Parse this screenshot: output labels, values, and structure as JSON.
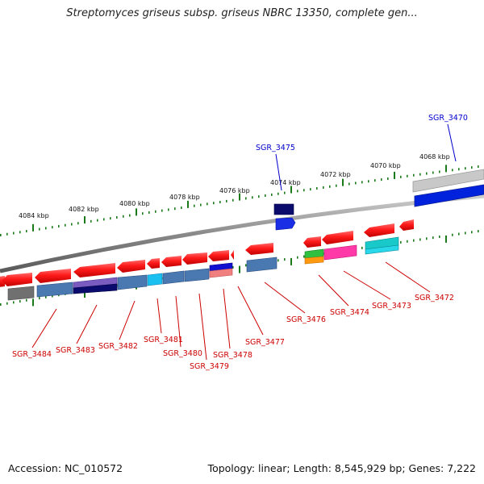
{
  "header": {
    "title": "Streptomyces griseus subsp. griseus NBRC 13350, complete gen..."
  },
  "footer": {
    "accession": "Accession: NC_010572",
    "summary": "Topology: linear; Length: 8,545,929 bp; Genes: 7,222"
  },
  "colors": {
    "forward_feature": "#ff1a1a",
    "label_red": "#cc0000",
    "label_blue": "#0000cc",
    "backbone": "#8a8a8a",
    "ruler_tick": "#1a7a1a"
  },
  "scale": {
    "labels": [
      "4084 kbp",
      "4082 kbp",
      "4080 kbp",
      "4078 kbp",
      "4076 kbp",
      "4074 kbp",
      "4072 kbp",
      "4070 kbp",
      "4068 kbp"
    ]
  },
  "genes": [
    {
      "name": "SGR_3484"
    },
    {
      "name": "SGR_3483"
    },
    {
      "name": "SGR_3482"
    },
    {
      "name": "SGR_3481"
    },
    {
      "name": "SGR_3480"
    },
    {
      "name": "SGR_3479"
    },
    {
      "name": "SGR_3478"
    },
    {
      "name": "SGR_3477"
    },
    {
      "name": "SGR_3476"
    },
    {
      "name": "SGR_3474"
    },
    {
      "name": "SGR_3473"
    },
    {
      "name": "SGR_3472"
    },
    {
      "name": "SGR_3475"
    },
    {
      "name": "SGR_3470"
    }
  ]
}
